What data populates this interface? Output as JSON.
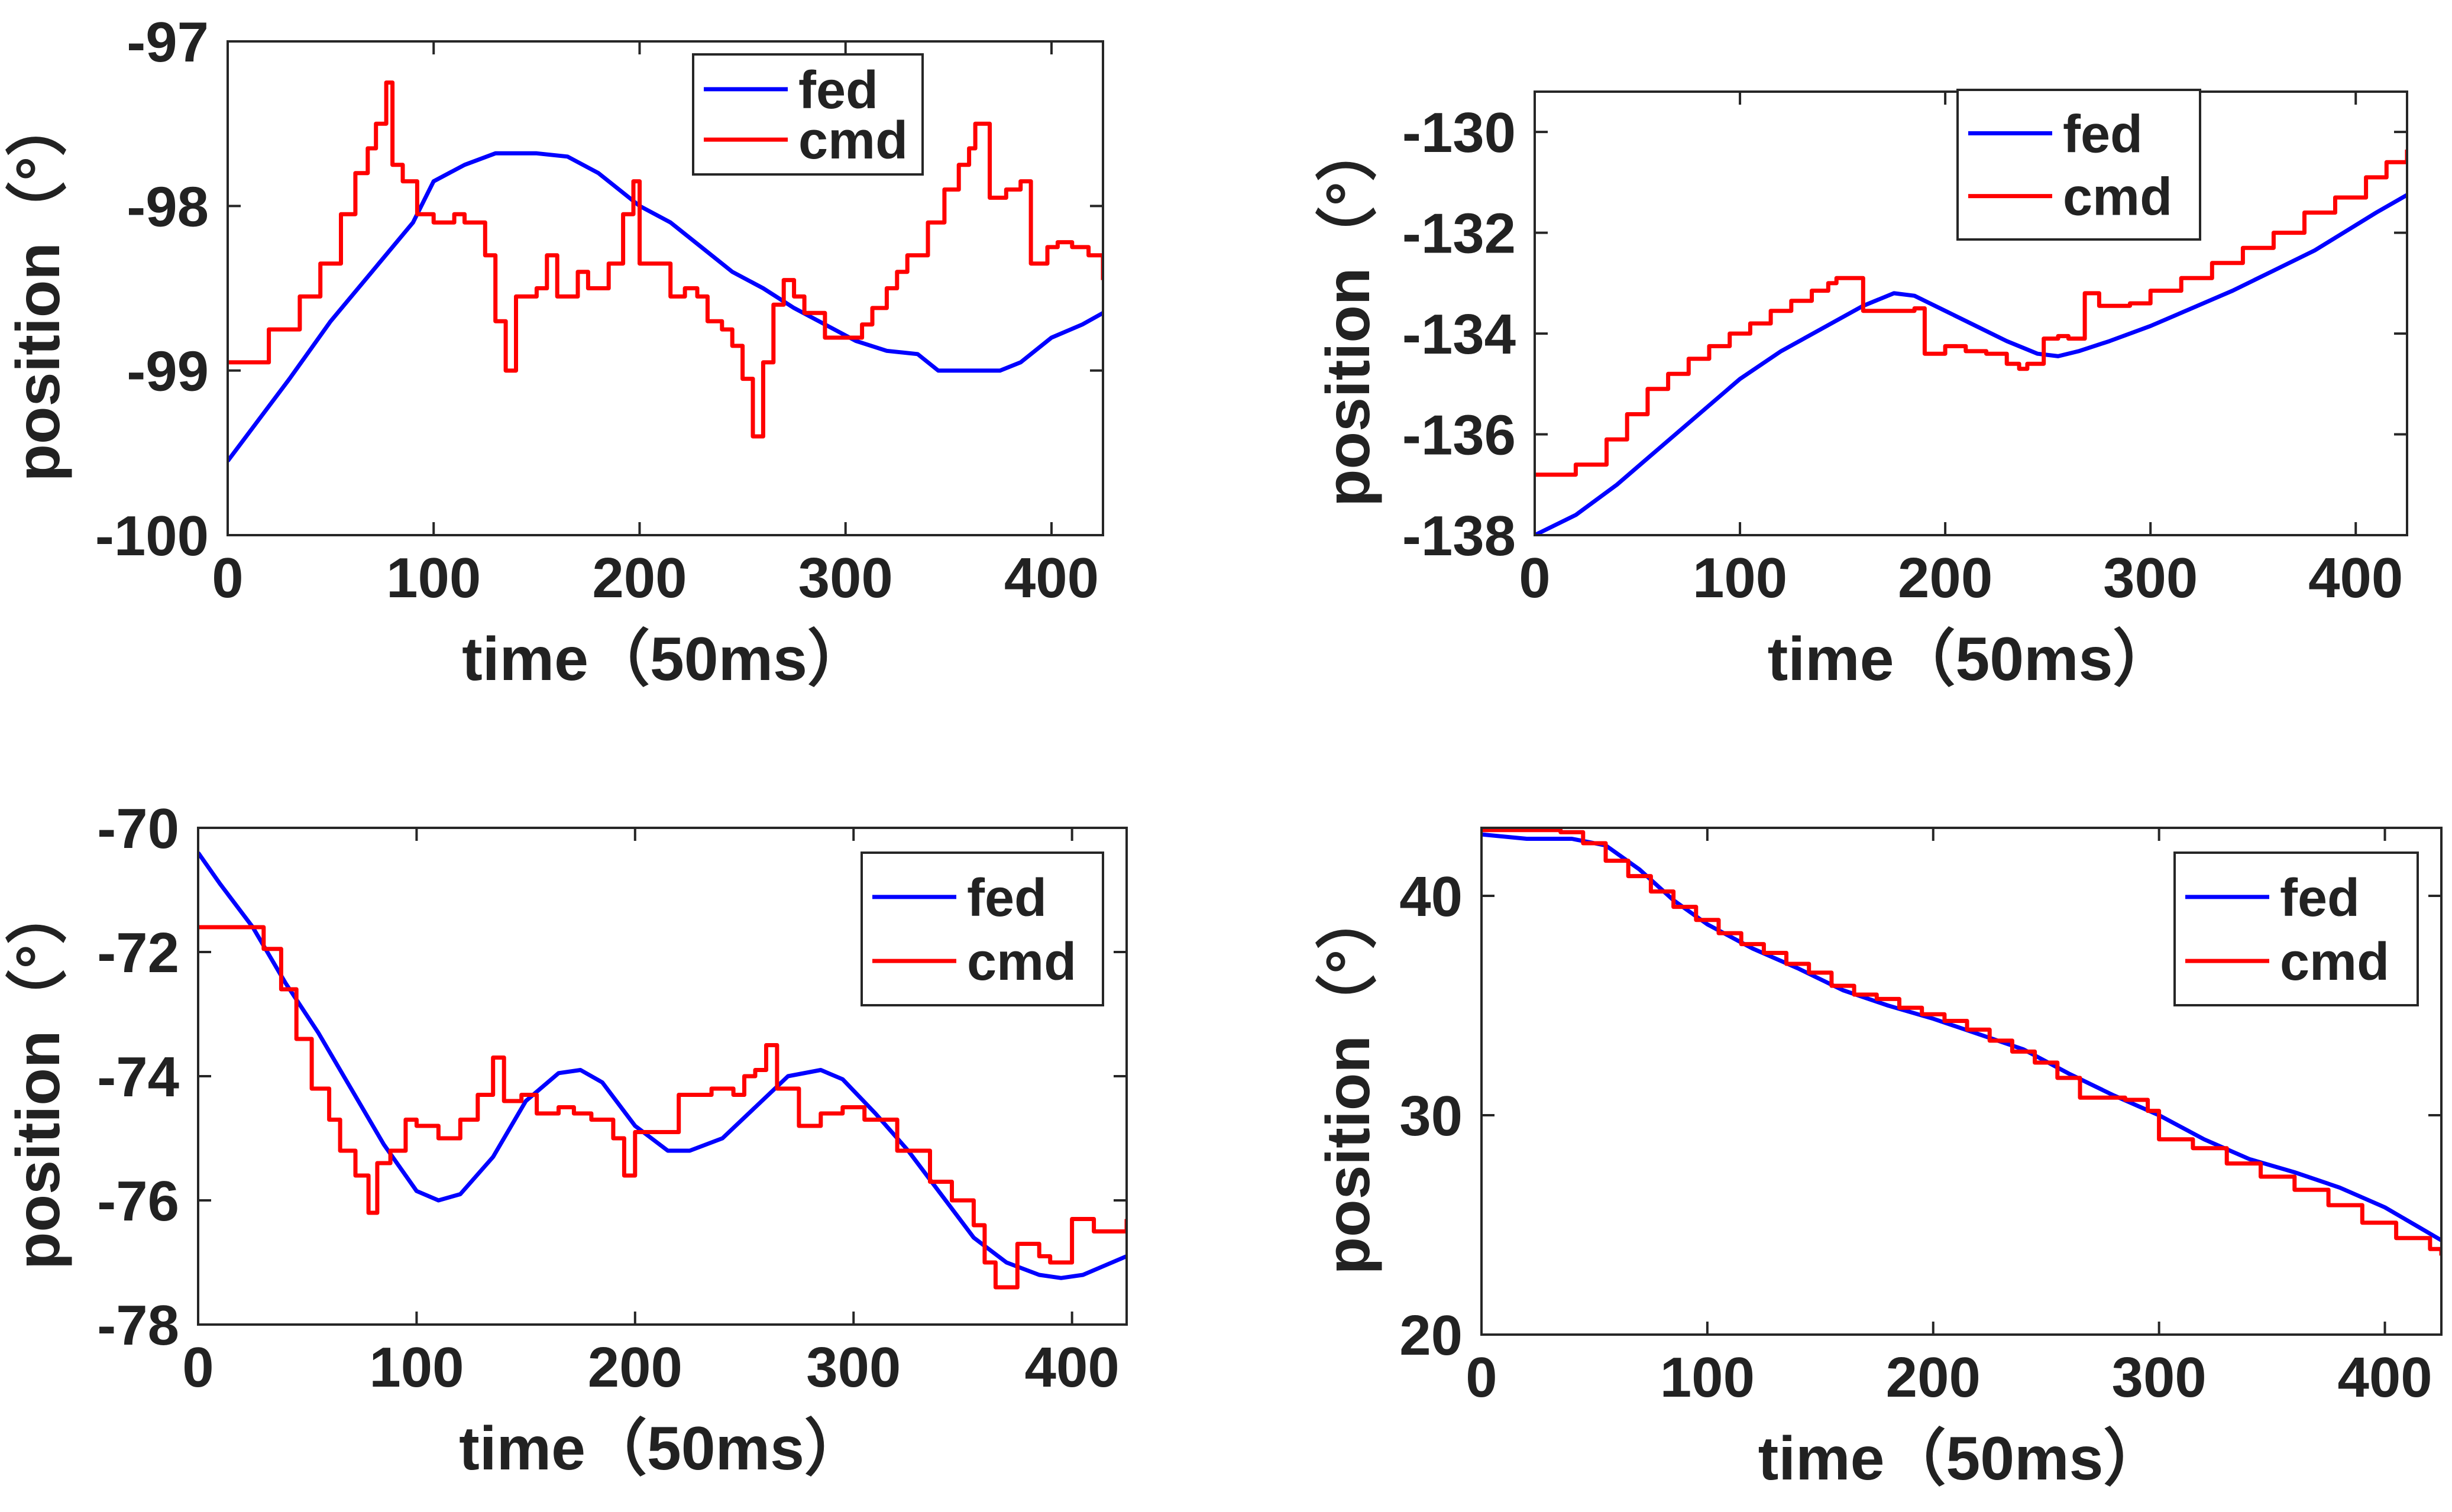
{
  "figure": {
    "panels_count": 4
  },
  "chart_data": [
    {
      "id": "tl",
      "type": "line",
      "title": "",
      "xlabel": "time（50ms）",
      "ylabel": "position（°）",
      "xlim": [
        0,
        425
      ],
      "ylim": [
        -100,
        -97
      ],
      "xticks": [
        0,
        100,
        200,
        300,
        400
      ],
      "xtick_labels": [
        "0",
        "100",
        "200",
        "300",
        "400"
      ],
      "yticks": [
        -100,
        -99,
        -98,
        -97
      ],
      "ytick_labels": [
        "-100",
        "-99",
        "-98",
        "-97"
      ],
      "legend_position": "top-right",
      "series": [
        {
          "name": "fed",
          "color": "#0000ff",
          "step": false,
          "x": [
            0,
            15,
            30,
            50,
            70,
            90,
            100,
            115,
            130,
            150,
            165,
            180,
            200,
            215,
            230,
            245,
            260,
            275,
            290,
            305,
            320,
            335,
            345,
            360,
            375,
            385,
            400,
            415,
            425
          ],
          "y": [
            -99.55,
            -99.3,
            -99.05,
            -98.7,
            -98.4,
            -98.1,
            -97.85,
            -97.75,
            -97.68,
            -97.68,
            -97.7,
            -97.8,
            -98,
            -98.1,
            -98.25,
            -98.4,
            -98.5,
            -98.62,
            -98.72,
            -98.82,
            -98.88,
            -98.9,
            -99,
            -99,
            -99,
            -98.95,
            -98.8,
            -98.72,
            -98.65
          ]
        },
        {
          "name": "cmd",
          "color": "#ff0000",
          "step": true,
          "x": [
            0,
            20,
            35,
            45,
            55,
            62,
            68,
            72,
            77,
            80,
            85,
            92,
            100,
            110,
            115,
            125,
            130,
            135,
            140,
            150,
            155,
            160,
            170,
            175,
            185,
            192,
            197,
            200,
            205,
            215,
            222,
            228,
            233,
            240,
            245,
            250,
            255,
            260,
            265,
            270,
            275,
            280,
            290,
            300,
            308,
            313,
            320,
            325,
            330,
            340,
            348,
            355,
            360,
            363,
            370,
            378,
            385,
            390,
            398,
            403,
            410,
            418,
            425
          ],
          "y": [
            -98.95,
            -98.75,
            -98.55,
            -98.35,
            -98.05,
            -97.8,
            -97.65,
            -97.5,
            -97.25,
            -97.75,
            -97.85,
            -98.05,
            -98.1,
            -98.05,
            -98.1,
            -98.3,
            -98.7,
            -99,
            -98.55,
            -98.5,
            -98.3,
            -98.55,
            -98.4,
            -98.5,
            -98.35,
            -98.05,
            -97.85,
            -98.35,
            -98.35,
            -98.55,
            -98.5,
            -98.55,
            -98.7,
            -98.75,
            -98.85,
            -99.05,
            -99.4,
            -98.95,
            -98.6,
            -98.45,
            -98.55,
            -98.65,
            -98.8,
            -98.8,
            -98.72,
            -98.62,
            -98.5,
            -98.4,
            -98.3,
            -98.1,
            -97.9,
            -97.75,
            -97.65,
            -97.5,
            -97.95,
            -97.9,
            -97.85,
            -98.35,
            -98.25,
            -98.22,
            -98.25,
            -98.3,
            -98.45
          ]
        }
      ]
    },
    {
      "id": "tr",
      "type": "line",
      "title": "",
      "xlabel": "time（50ms）",
      "ylabel": "position（°）",
      "xlim": [
        0,
        425
      ],
      "ylim": [
        -138,
        -129.2
      ],
      "xticks": [
        0,
        100,
        200,
        300,
        400
      ],
      "xtick_labels": [
        "0",
        "100",
        "200",
        "300",
        "400"
      ],
      "yticks": [
        -138,
        -136,
        -134,
        -132,
        -130
      ],
      "ytick_labels": [
        "-138",
        "-136",
        "-134",
        "-132",
        "-130"
      ],
      "legend_position": "top-right",
      "series": [
        {
          "name": "fed",
          "color": "#0000ff",
          "step": false,
          "x": [
            0,
            20,
            40,
            60,
            80,
            100,
            120,
            140,
            160,
            175,
            185,
            200,
            215,
            230,
            245,
            255,
            265,
            280,
            300,
            320,
            340,
            360,
            380,
            400,
            410,
            425
          ],
          "y": [
            -138,
            -137.6,
            -137,
            -136.3,
            -135.6,
            -134.9,
            -134.35,
            -133.9,
            -133.45,
            -133.2,
            -133.25,
            -133.55,
            -133.85,
            -134.15,
            -134.4,
            -134.45,
            -134.35,
            -134.15,
            -133.85,
            -133.5,
            -133.15,
            -132.75,
            -132.35,
            -131.85,
            -131.6,
            -131.25
          ]
        },
        {
          "name": "cmd",
          "color": "#ff0000",
          "step": true,
          "x": [
            0,
            20,
            35,
            45,
            55,
            65,
            75,
            85,
            95,
            105,
            115,
            125,
            135,
            143,
            147,
            160,
            175,
            185,
            190,
            200,
            210,
            220,
            230,
            236,
            240,
            248,
            255,
            260,
            268,
            275,
            290,
            300,
            315,
            330,
            345,
            360,
            375,
            390,
            405,
            415,
            425
          ],
          "y": [
            -136.8,
            -136.6,
            -136.1,
            -135.6,
            -135.1,
            -134.8,
            -134.5,
            -134.25,
            -134.0,
            -133.8,
            -133.55,
            -133.35,
            -133.15,
            -133.0,
            -132.9,
            -133.55,
            -133.55,
            -133.5,
            -134.4,
            -134.25,
            -134.35,
            -134.4,
            -134.6,
            -134.7,
            -134.6,
            -134.1,
            -134.05,
            -134.1,
            -133.2,
            -133.45,
            -133.4,
            -133.15,
            -132.9,
            -132.6,
            -132.3,
            -132.0,
            -131.6,
            -131.3,
            -130.9,
            -130.6,
            -130.35
          ]
        }
      ]
    },
    {
      "id": "bl",
      "type": "line",
      "title": "",
      "xlabel": "time（50ms）",
      "ylabel": "position（°）",
      "xlim": [
        0,
        425
      ],
      "ylim": [
        -78,
        -70
      ],
      "xticks": [
        0,
        100,
        200,
        300,
        400
      ],
      "xtick_labels": [
        "0",
        "100",
        "200",
        "300",
        "400"
      ],
      "yticks": [
        -78,
        -76,
        -74,
        -72,
        -70
      ],
      "ytick_labels": [
        "-78",
        "-76",
        "-74",
        "-72",
        "-70"
      ],
      "legend_position": "top-right",
      "series": [
        {
          "name": "fed",
          "color": "#0000ff",
          "step": false,
          "x": [
            0,
            10,
            25,
            40,
            55,
            70,
            85,
            100,
            110,
            120,
            135,
            150,
            165,
            175,
            185,
            200,
            215,
            225,
            240,
            255,
            270,
            285,
            295,
            310,
            325,
            340,
            355,
            370,
            385,
            395,
            405,
            415,
            425
          ],
          "y": [
            -70.4,
            -70.9,
            -71.6,
            -72.5,
            -73.3,
            -74.2,
            -75.1,
            -75.85,
            -76.0,
            -75.9,
            -75.3,
            -74.4,
            -73.95,
            -73.9,
            -74.1,
            -74.8,
            -75.2,
            -75.2,
            -75.0,
            -74.5,
            -74.0,
            -73.9,
            -74.05,
            -74.6,
            -75.2,
            -75.9,
            -76.6,
            -77.0,
            -77.2,
            -77.25,
            -77.2,
            -77.05,
            -76.9
          ]
        },
        {
          "name": "cmd",
          "color": "#ff0000",
          "step": true,
          "x": [
            0,
            20,
            30,
            38,
            45,
            52,
            60,
            65,
            72,
            78,
            82,
            88,
            95,
            100,
            110,
            120,
            128,
            135,
            140,
            148,
            155,
            165,
            172,
            180,
            190,
            195,
            200,
            210,
            220,
            235,
            245,
            250,
            255,
            260,
            265,
            275,
            285,
            295,
            305,
            320,
            335,
            345,
            355,
            360,
            365,
            375,
            385,
            390,
            400,
            410,
            420,
            425
          ],
          "y": [
            -71.6,
            -71.6,
            -71.95,
            -72.6,
            -73.4,
            -74.2,
            -74.7,
            -75.2,
            -75.6,
            -76.2,
            -75.4,
            -75.2,
            -74.7,
            -74.8,
            -75.0,
            -74.7,
            -74.3,
            -73.7,
            -74.4,
            -74.3,
            -74.6,
            -74.5,
            -74.6,
            -74.7,
            -75.0,
            -75.6,
            -74.9,
            -74.9,
            -74.3,
            -74.2,
            -74.3,
            -74.0,
            -73.9,
            -73.5,
            -74.2,
            -74.8,
            -74.6,
            -74.5,
            -74.7,
            -75.2,
            -75.7,
            -76.0,
            -76.4,
            -77.0,
            -77.4,
            -76.7,
            -76.9,
            -77.0,
            -76.3,
            -76.5,
            -76.5,
            -76.3
          ]
        }
      ]
    },
    {
      "id": "br",
      "type": "line",
      "title": "",
      "xlabel": "time（50ms）",
      "ylabel": "position（°）",
      "xlim": [
        0,
        425
      ],
      "ylim": [
        20,
        43.1
      ],
      "xticks": [
        0,
        100,
        200,
        300,
        400
      ],
      "xtick_labels": [
        "0",
        "100",
        "200",
        "300",
        "400"
      ],
      "yticks": [
        20,
        30,
        40
      ],
      "ytick_labels": [
        "20",
        "30",
        "40"
      ],
      "legend_position": "top-right",
      "series": [
        {
          "name": "fed",
          "color": "#0000ff",
          "step": false,
          "x": [
            0,
            20,
            40,
            55,
            70,
            85,
            100,
            120,
            140,
            160,
            180,
            200,
            220,
            240,
            260,
            280,
            300,
            320,
            340,
            360,
            380,
            400,
            415,
            425
          ],
          "y": [
            42.8,
            42.6,
            42.6,
            42.3,
            41.2,
            39.8,
            38.7,
            37.6,
            36.7,
            35.7,
            35.0,
            34.4,
            33.7,
            33.0,
            31.9,
            30.9,
            30.0,
            28.9,
            28.0,
            27.4,
            26.7,
            25.8,
            24.9,
            24.3
          ]
        },
        {
          "name": "cmd",
          "color": "#ff0000",
          "step": true,
          "x": [
            0,
            15,
            25,
            35,
            45,
            55,
            65,
            75,
            85,
            95,
            105,
            115,
            125,
            135,
            145,
            155,
            165,
            175,
            185,
            195,
            205,
            215,
            225,
            235,
            245,
            255,
            265,
            275,
            285,
            295,
            300,
            315,
            330,
            345,
            360,
            375,
            390,
            405,
            420,
            425
          ],
          "y": [
            43.0,
            43.0,
            43.0,
            42.9,
            42.4,
            41.6,
            40.9,
            40.2,
            39.5,
            38.9,
            38.3,
            37.8,
            37.4,
            36.9,
            36.5,
            35.9,
            35.5,
            35.3,
            34.9,
            34.6,
            34.3,
            33.9,
            33.4,
            32.9,
            32.4,
            31.7,
            30.8,
            30.8,
            30.7,
            30.2,
            28.9,
            28.5,
            27.8,
            27.2,
            26.6,
            25.9,
            25.1,
            24.4,
            23.9,
            23.6
          ]
        }
      ]
    }
  ]
}
